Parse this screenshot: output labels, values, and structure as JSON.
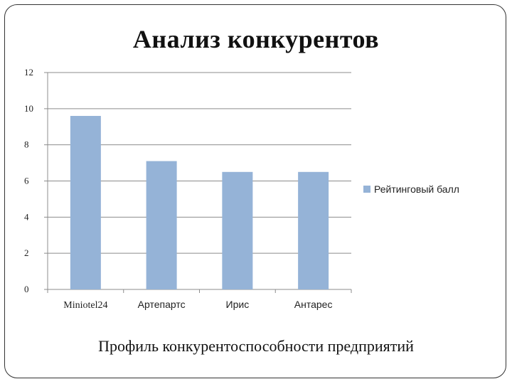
{
  "chart_data": {
    "type": "bar",
    "title": "Анализ конкурентов",
    "subtitle": "Профиль конкурентоспособности предприятий",
    "categories": [
      "Miniotel24",
      "Артепартс",
      "Ирис",
      "Антарес"
    ],
    "series": [
      {
        "name": "Рейтинговый балл",
        "values": [
          9.6,
          7.1,
          6.5,
          6.5
        ]
      }
    ],
    "ylim": [
      0,
      12
    ],
    "yticks": [
      "0",
      "2",
      "4",
      "6",
      "8",
      "10",
      "12"
    ],
    "grid": true,
    "legend": "right",
    "colors": {
      "bar": "#95b3d7",
      "grid": "#8c8c8c"
    }
  }
}
